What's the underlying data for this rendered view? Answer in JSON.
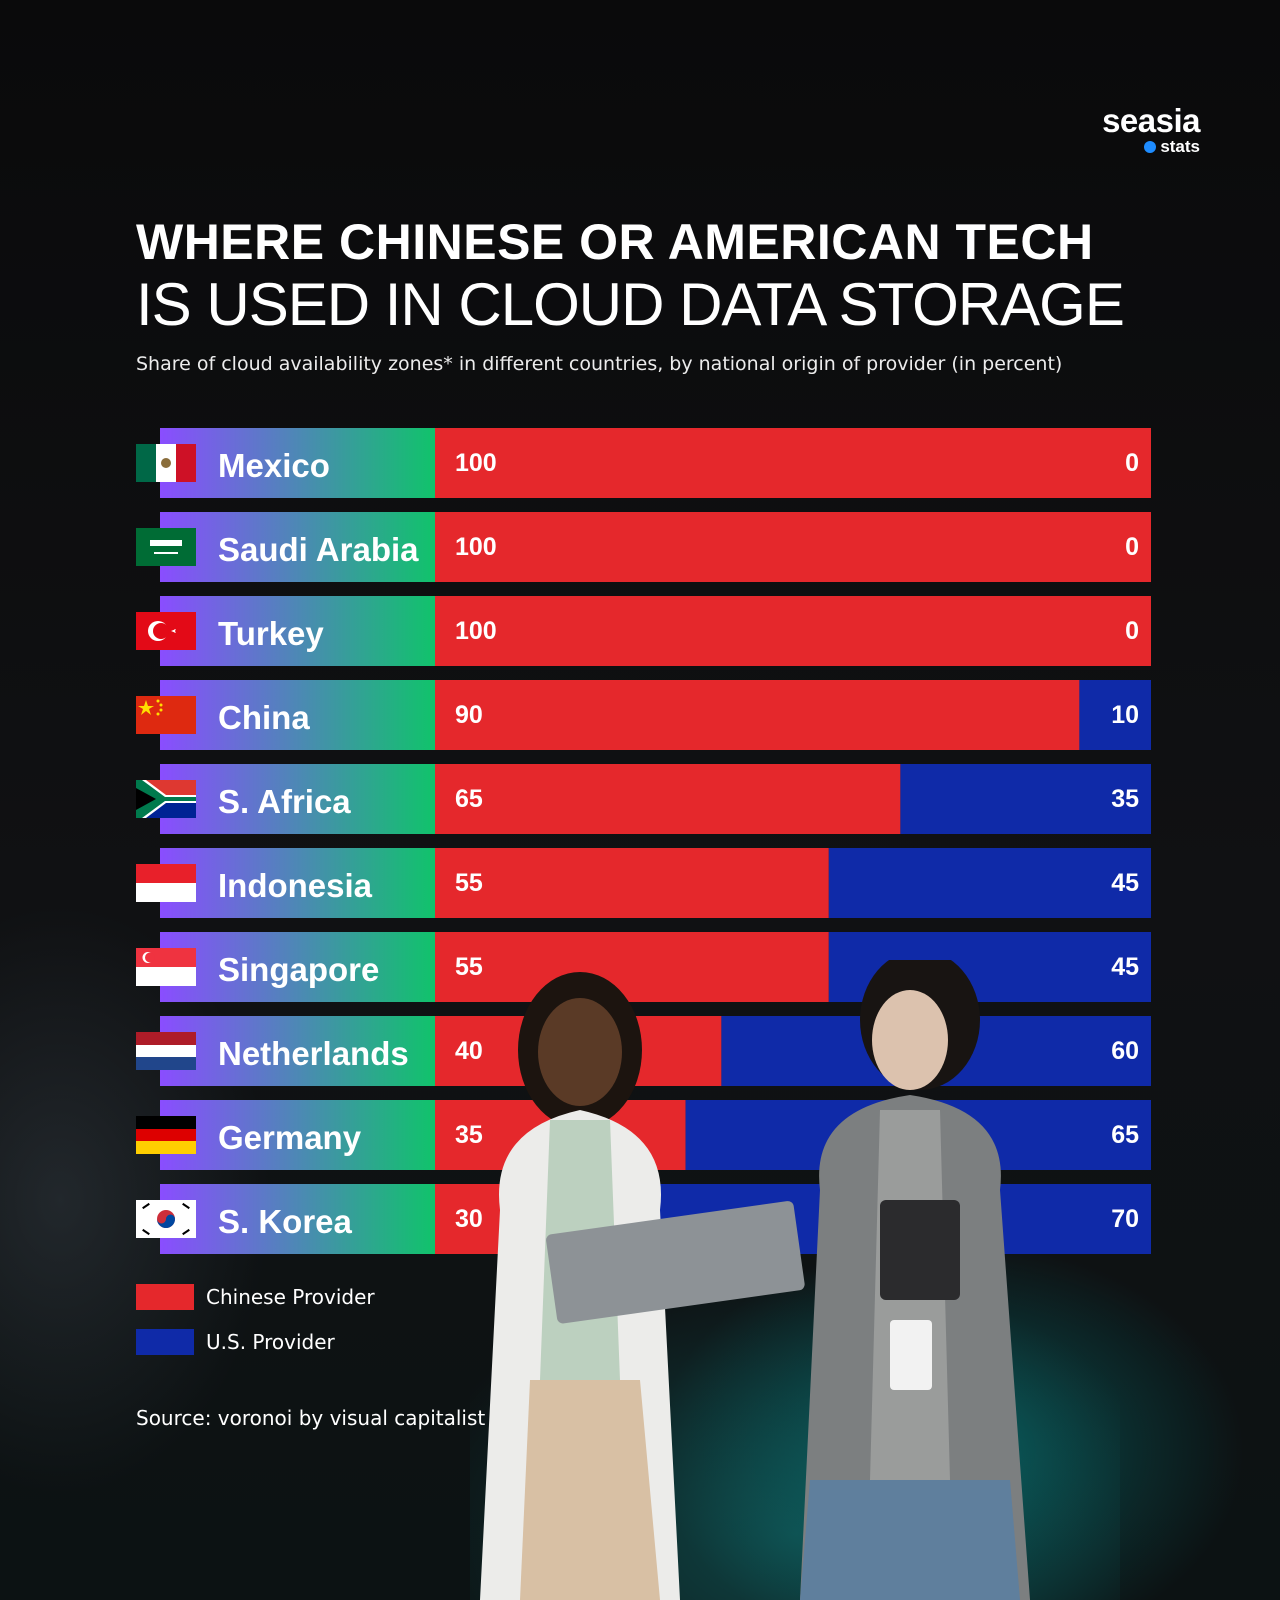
{
  "brand": {
    "name": "seasia",
    "sub": "stats"
  },
  "title_line1": "WHERE CHINESE OR AMERICAN TECH",
  "title_line2": "IS USED IN CLOUD DATA STORAGE",
  "subtitle": "Share of cloud availability zones* in different countries, by national origin of provider (in percent)",
  "colors": {
    "chinese": "#e5282c",
    "us": "#0f2aa8",
    "label_gradient_start": "#8a4dff",
    "label_gradient_end": "#10c36b"
  },
  "chart_data": {
    "type": "bar",
    "stacked": true,
    "orientation": "horizontal",
    "categories": [
      "Mexico",
      "Saudi Arabia",
      "Turkey",
      "China",
      "S. Africa",
      "Indonesia",
      "Singapore",
      "Netherlands",
      "Germany",
      "S. Korea"
    ],
    "series": [
      {
        "name": "Chinese Provider",
        "values": [
          100,
          100,
          100,
          90,
          65,
          55,
          55,
          40,
          35,
          30
        ]
      },
      {
        "name": "U.S. Provider",
        "values": [
          0,
          0,
          0,
          10,
          35,
          45,
          45,
          60,
          65,
          70
        ]
      }
    ],
    "xlim": [
      0,
      100
    ],
    "legend": "bottom-left",
    "flags": [
      "mexico-flag-icon",
      "saudi-arabia-flag-icon",
      "turkey-flag-icon",
      "china-flag-icon",
      "south-africa-flag-icon",
      "indonesia-flag-icon",
      "singapore-flag-icon",
      "netherlands-flag-icon",
      "germany-flag-icon",
      "south-korea-flag-icon"
    ]
  },
  "legend": {
    "chinese_label": "Chinese Provider",
    "us_label": "U.S. Provider"
  },
  "source": "Source: voronoi by visual capitalist"
}
